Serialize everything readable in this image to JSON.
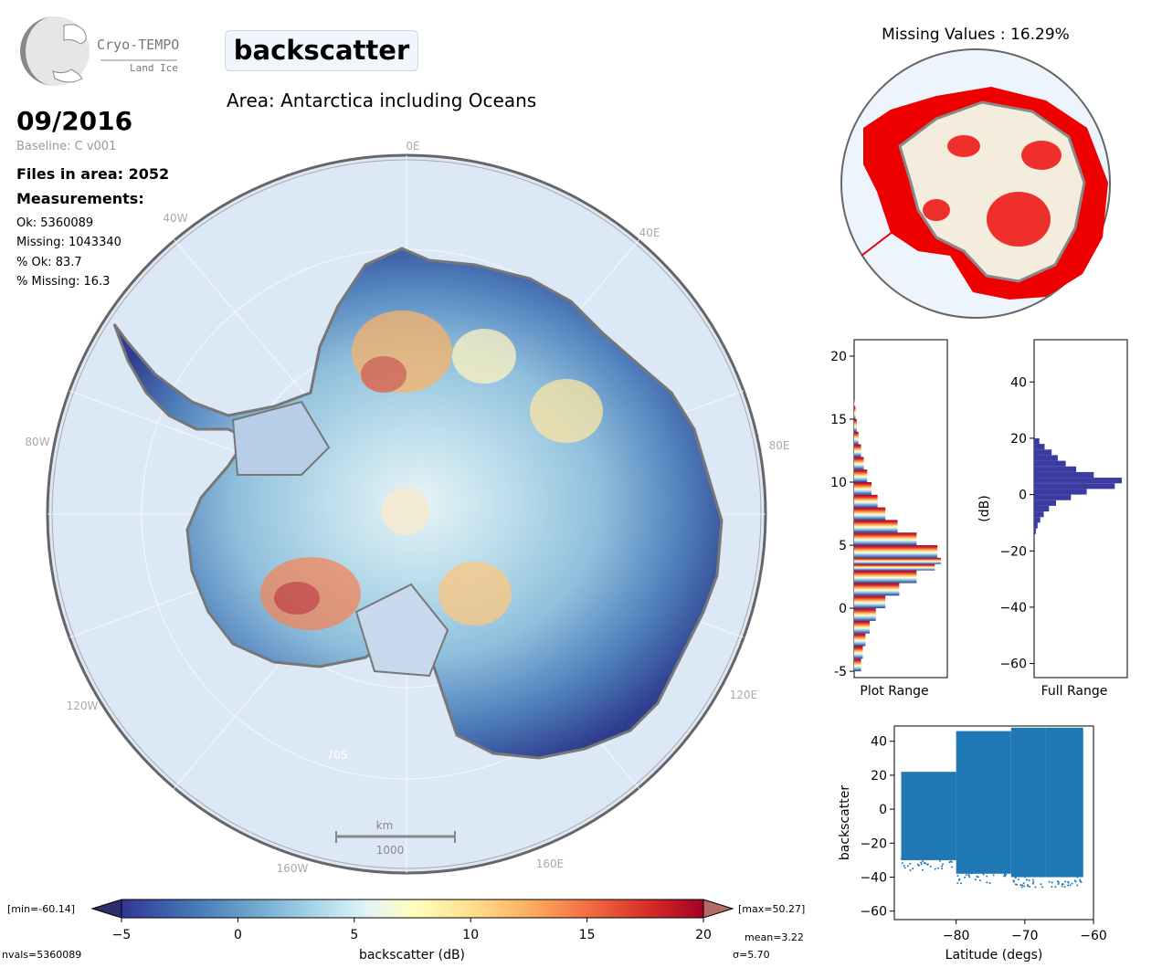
{
  "header": {
    "logo_text": "Cryo-TEMPO",
    "logo_subtext": "Land Ice",
    "variable_title": "backscatter",
    "area_title": "Area: Antarctica including Oceans",
    "date": "09/2016",
    "baseline": "Baseline: C v001",
    "files_in_area": "Files in area: 2052",
    "measurements_title": "Measurements:",
    "stats": [
      "Ok: 5360089",
      "Missing: 1043340",
      "% Ok: 83.7",
      "% Missing: 16.3"
    ]
  },
  "map": {
    "labels": {
      "lon_0E": "0E",
      "lon_40W": "40W",
      "lon_40E": "40E",
      "lon_80W": "80W",
      "lon_80E": "80E",
      "lon_120W": "120W",
      "lon_120E": "120E",
      "lon_160W": "160W",
      "lon_160E": "160E",
      "lat_70S": "70S"
    },
    "scale_unit": "km",
    "scale_value": "1000"
  },
  "missing_map": {
    "title": "Missing Values : 16.29%"
  },
  "colorbar": {
    "min_label": "[min=-60.14]",
    "max_label": "[max=50.27]",
    "ticks": [
      "-5",
      "0",
      "5",
      "10",
      "15",
      "20"
    ],
    "label": "backscatter (dB)",
    "nvals": "nvals=5360089",
    "mean": "mean=3.22",
    "sigma": "σ=5.70",
    "colors": [
      "#313695",
      "#4575b4",
      "#74add1",
      "#abd9e9",
      "#e0f3f8",
      "#ffffbf",
      "#fee090",
      "#fdae61",
      "#f46d43",
      "#d73027",
      "#a50026"
    ]
  },
  "chart_data": [
    {
      "type": "bar",
      "orientation": "horizontal",
      "xlabel": "Plot Range",
      "ylabel": "",
      "ylim": [
        -5.5,
        21.3
      ],
      "yticks": [
        "-5",
        "0",
        "5",
        "10",
        "15",
        "20"
      ],
      "bins": [
        -5,
        -4,
        -3,
        -2,
        -1,
        0,
        1,
        2,
        3,
        3.5,
        4,
        5,
        6,
        7,
        8,
        9,
        10,
        11,
        12,
        13,
        14,
        15,
        16,
        16.5
      ],
      "values": [
        0.08,
        0.1,
        0.13,
        0.18,
        0.25,
        0.36,
        0.52,
        0.72,
        0.93,
        1.0,
        0.96,
        0.72,
        0.5,
        0.36,
        0.27,
        0.2,
        0.15,
        0.11,
        0.08,
        0.05,
        0.03,
        0.015,
        0.005,
        0.0
      ]
    },
    {
      "type": "bar",
      "orientation": "horizontal",
      "xlabel": "Full Range",
      "ylabel": "(dB)",
      "ylim": [
        -65,
        55
      ],
      "yticks": [
        "-60",
        "-40",
        "-20",
        "0",
        "20",
        "40"
      ],
      "bins": [
        -14,
        -12,
        -10,
        -8,
        -6,
        -4,
        -2,
        0,
        2,
        4,
        6,
        8,
        10,
        12,
        14,
        16,
        18,
        20
      ],
      "values": [
        0.02,
        0.04,
        0.07,
        0.11,
        0.17,
        0.25,
        0.42,
        0.6,
        0.92,
        1.0,
        0.68,
        0.48,
        0.36,
        0.27,
        0.2,
        0.12,
        0.06,
        0.02
      ]
    },
    {
      "type": "scatter",
      "xlabel": "Latitude (degs)",
      "ylabel": "backscatter",
      "xlim": [
        -89,
        -60
      ],
      "ylim": [
        -65,
        49
      ],
      "xticks": [
        "-80",
        "-70",
        "-60"
      ],
      "yticks": [
        "-60",
        "-40",
        "-20",
        "0",
        "20",
        "40"
      ],
      "color": "#1f77b4",
      "bands": [
        {
          "x": [
            -88,
            -80
          ],
          "y": [
            -30,
            22
          ]
        },
        {
          "x": [
            -80,
            -72
          ],
          "y": [
            -38,
            46
          ]
        },
        {
          "x": [
            -72,
            -67
          ],
          "y": [
            -40,
            48
          ]
        },
        {
          "x": [
            -67,
            -61.5
          ],
          "y": [
            -40,
            48
          ]
        }
      ]
    }
  ]
}
